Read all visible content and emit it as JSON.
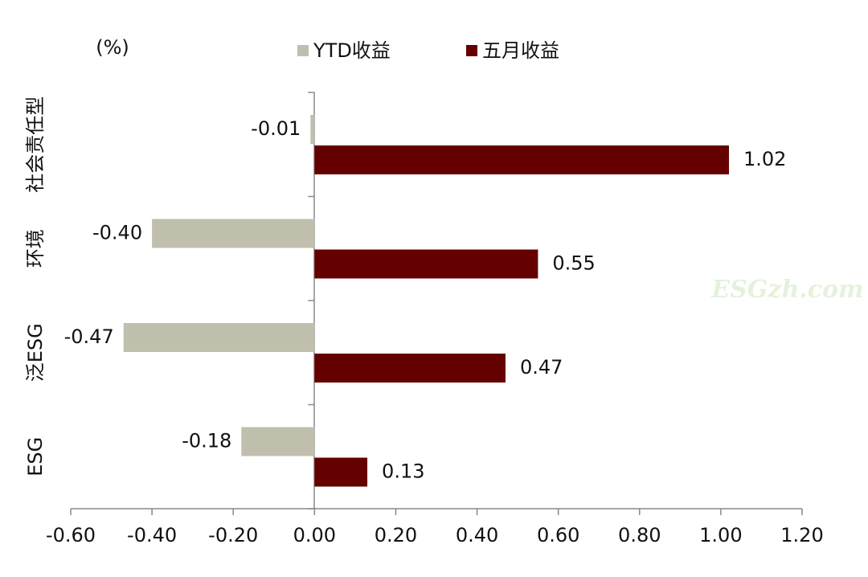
{
  "chart_data": {
    "type": "bar",
    "orientation": "horizontal",
    "unit_label": "(%)",
    "watermark": "ESGzh.com",
    "categories": [
      "社会责任型",
      "环境",
      "泛ESG",
      "ESG"
    ],
    "series": [
      {
        "name": "YTD收益",
        "color": "#c0bfae",
        "values": [
          -0.01,
          -0.4,
          -0.47,
          -0.18
        ],
        "value_labels": [
          "-0.01",
          "-0.40",
          "-0.47",
          "-0.18"
        ]
      },
      {
        "name": "五月收益",
        "color": "#650000",
        "values": [
          1.02,
          0.55,
          0.47,
          0.13
        ],
        "value_labels": [
          "1.02",
          "0.55",
          "0.47",
          "0.13"
        ]
      }
    ],
    "xlim": [
      -0.6,
      1.2
    ],
    "xticks": [
      {
        "value": -0.6,
        "label": "-0.60"
      },
      {
        "value": -0.4,
        "label": "-0.40"
      },
      {
        "value": -0.2,
        "label": "-0.20"
      },
      {
        "value": 0,
        "label": "0.00"
      },
      {
        "value": 0.2,
        "label": "0.20"
      },
      {
        "value": 0.4,
        "label": "0.40"
      },
      {
        "value": 0.6,
        "label": "0.60"
      },
      {
        "value": 0.8,
        "label": "0.80"
      },
      {
        "value": 1.0,
        "label": "1.00"
      },
      {
        "value": 1.2,
        "label": "1.20"
      }
    ],
    "grid": false,
    "legend_position": "top"
  }
}
